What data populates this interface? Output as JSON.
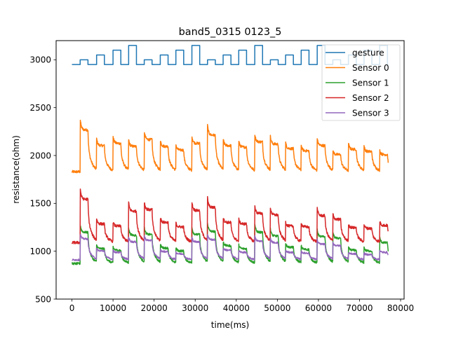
{
  "chart_data": {
    "type": "line",
    "title": "band5_0315 0123_5",
    "xlabel": "time(ms)",
    "ylabel": "resistance(ohm)",
    "xlim": [
      -3850,
      80850
    ],
    "ylim": [
      500,
      3200
    ],
    "xticks": [
      0,
      10000,
      20000,
      30000,
      40000,
      50000,
      60000,
      70000,
      80000
    ],
    "xtick_labels": [
      "0",
      "10000",
      "20000",
      "30000",
      "40000",
      "50000",
      "60000",
      "70000",
      "80000"
    ],
    "yticks": [
      500,
      1000,
      1500,
      2000,
      2500,
      3000
    ],
    "ytick_labels": [
      "500",
      "1000",
      "1500",
      "2000",
      "2500",
      "3000"
    ],
    "legend_position": "top-right",
    "pulse_starts": [
      2000,
      6000,
      10000,
      13800,
      17600,
      21500,
      25300,
      29200,
      33000,
      36800,
      40600,
      44500,
      48300,
      52000,
      55800,
      59700,
      63500,
      67300,
      71100,
      74900
    ],
    "series": [
      {
        "name": "gesture",
        "color": "#1f77b4",
        "baseline": 2950,
        "levels": [
          3000,
          3050,
          3100,
          3150,
          3000,
          3050,
          3100,
          3150,
          3000,
          3050,
          3100,
          3150,
          3000,
          3050,
          3100,
          3150,
          3000,
          3050,
          3100,
          3150
        ],
        "x_range": [
          0,
          77000
        ]
      },
      {
        "name": "Sensor 0",
        "color": "#ff7f0e",
        "baseline": 1830,
        "peaks": [
          2390,
          2180,
          2210,
          2170,
          2260,
          2170,
          2120,
          2210,
          2320,
          2180,
          2160,
          2230,
          2200,
          2140,
          2110,
          2180,
          2060,
          2130,
          2100,
          2060
        ],
        "x_range": [
          0,
          77000
        ]
      },
      {
        "name": "Sensor 1",
        "color": "#2ca02c",
        "baseline": 870,
        "peaks": [
          1290,
          1070,
          1050,
          1250,
          1260,
          1080,
          1040,
          1260,
          1300,
          1110,
          1070,
          1290,
          1240,
          1090,
          1060,
          1230,
          1210,
          1050,
          1040,
          1150
        ],
        "x_range": [
          0,
          77000
        ]
      },
      {
        "name": "Sensor 2",
        "color": "#d62728",
        "baseline": 1090,
        "peaks": [
          1670,
          1340,
          1310,
          1510,
          1530,
          1360,
          1300,
          1520,
          1560,
          1360,
          1340,
          1480,
          1460,
          1310,
          1300,
          1450,
          1400,
          1290,
          1280,
          1320
        ],
        "x_range": [
          0,
          77000
        ]
      },
      {
        "name": "Sensor 3",
        "color": "#9467bd",
        "baseline": 910,
        "peaks": [
          1190,
          1030,
          1010,
          1150,
          1170,
          1020,
          990,
          1150,
          1180,
          1040,
          1010,
          1160,
          1140,
          1010,
          1000,
          1120,
          1100,
          990,
          980,
          1010
        ],
        "x_range": [
          0,
          77000
        ]
      }
    ]
  }
}
